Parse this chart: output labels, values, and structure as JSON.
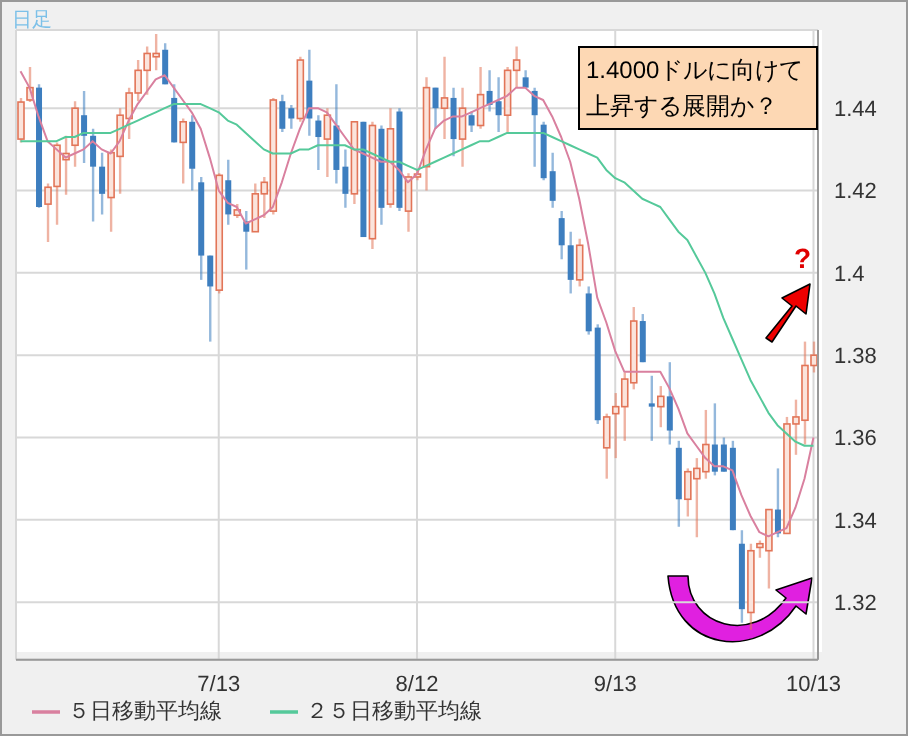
{
  "chart_data": {
    "type": "candlestick",
    "categories": [
      null,
      null,
      null,
      null,
      null,
      null,
      null,
      null,
      null,
      null,
      null,
      null,
      null,
      null,
      null,
      null,
      null,
      null,
      null,
      null,
      null,
      null,
      "7/13",
      null,
      null,
      null,
      null,
      null,
      null,
      null,
      null,
      null,
      null,
      null,
      null,
      null,
      null,
      null,
      null,
      null,
      null,
      null,
      null,
      null,
      "8/12",
      null,
      null,
      null,
      null,
      null,
      null,
      null,
      null,
      null,
      null,
      null,
      null,
      null,
      null,
      null,
      null,
      null,
      null,
      null,
      null,
      null,
      "9/13",
      null,
      null,
      null,
      null,
      null,
      null,
      null,
      null,
      null,
      null,
      null,
      null,
      null,
      null,
      null,
      null,
      null,
      null,
      null,
      null,
      null,
      "10/13"
    ],
    "ohlc": [
      [
        1.4325,
        1.4425,
        1.4317,
        1.4415
      ],
      [
        1.442,
        1.45,
        1.4415,
        1.445
      ],
      [
        1.445,
        1.4458,
        1.4158,
        1.416
      ],
      [
        1.4167,
        1.4217,
        1.4075,
        1.4208
      ],
      [
        1.421,
        1.4317,
        1.4117,
        1.431
      ],
      [
        1.4275,
        1.4333,
        1.419,
        1.429
      ],
      [
        1.431,
        1.4417,
        1.4258,
        1.44
      ],
      [
        1.4383,
        1.4442,
        1.4267,
        1.4333
      ],
      [
        1.4333,
        1.435,
        1.4125,
        1.4258
      ],
      [
        1.4258,
        1.4292,
        1.4142,
        1.4192
      ],
      [
        1.4183,
        1.43,
        1.41,
        1.4292
      ],
      [
        1.4283,
        1.44,
        1.4192,
        1.4383
      ],
      [
        1.4375,
        1.445,
        1.4325,
        1.4437
      ],
      [
        1.4437,
        1.4517,
        1.4417,
        1.4492
      ],
      [
        1.4492,
        1.455,
        1.4433,
        1.4533
      ],
      [
        1.4525,
        1.458,
        1.4492,
        1.4533
      ],
      [
        1.4542,
        1.4558,
        1.4458,
        1.4458
      ],
      [
        1.4425,
        1.4458,
        1.4317,
        1.4317
      ],
      [
        1.4317,
        1.4375,
        1.4217,
        1.4367
      ],
      [
        1.4367,
        1.4383,
        1.42,
        1.4253
      ],
      [
        1.422,
        1.4233,
        1.3983,
        1.4042
      ],
      [
        1.4042,
        1.4042,
        1.3833,
        1.3967
      ],
      [
        1.3958,
        1.4242,
        1.395,
        1.4237
      ],
      [
        1.4225,
        1.4275,
        1.4117,
        1.4142
      ],
      [
        1.414,
        1.4167,
        1.4133,
        1.4153
      ],
      [
        1.4125,
        1.415,
        1.4008,
        1.41
      ],
      [
        1.41,
        1.4217,
        1.41,
        1.4192
      ],
      [
        1.4192,
        1.4233,
        1.4133,
        1.422
      ],
      [
        1.415,
        1.4425,
        1.4142,
        1.442
      ],
      [
        1.4417,
        1.4433,
        1.4342,
        1.435
      ],
      [
        1.44,
        1.4408,
        1.435,
        1.4375
      ],
      [
        1.4375,
        1.4525,
        1.4367,
        1.4517
      ],
      [
        1.4467,
        1.4542,
        1.4333,
        1.4375
      ],
      [
        1.437,
        1.4383,
        1.425,
        1.433
      ],
      [
        1.4325,
        1.44,
        1.4233,
        1.4383
      ],
      [
        1.4358,
        1.4458,
        1.4217,
        1.425
      ],
      [
        1.4258,
        1.43,
        1.4158,
        1.4192
      ],
      [
        1.4192,
        1.4367,
        1.4167,
        1.4367
      ],
      [
        1.4367,
        1.4367,
        1.4087,
        1.4087
      ],
      [
        1.4083,
        1.4367,
        1.4058,
        1.4358
      ],
      [
        1.435,
        1.4358,
        1.4117,
        1.4158
      ],
      [
        1.4167,
        1.44,
        1.4158,
        1.435
      ],
      [
        1.4392,
        1.44,
        1.415,
        1.4158
      ],
      [
        1.415,
        1.4242,
        1.41,
        1.4233
      ],
      [
        1.4233,
        1.425,
        1.4225,
        1.424
      ],
      [
        1.4258,
        1.4475,
        1.42,
        1.445
      ],
      [
        1.445,
        1.445,
        1.435,
        1.44
      ],
      [
        1.44,
        1.4525,
        1.4325,
        1.4425
      ],
      [
        1.4425,
        1.445,
        1.4283,
        1.4325
      ],
      [
        1.4325,
        1.445,
        1.4258,
        1.44
      ],
      [
        1.4383,
        1.4392,
        1.4342,
        1.4358
      ],
      [
        1.4358,
        1.45,
        1.435,
        1.4433
      ],
      [
        1.4442,
        1.4492,
        1.4392,
        1.4408
      ],
      [
        1.4417,
        1.4475,
        1.4342,
        1.4383
      ],
      [
        1.4383,
        1.45,
        1.4342,
        1.4492
      ],
      [
        1.4492,
        1.455,
        1.445,
        1.4517
      ],
      [
        1.4475,
        1.4492,
        1.445,
        1.445
      ],
      [
        1.4442,
        1.445,
        1.4258,
        1.4383
      ],
      [
        1.436,
        1.4367,
        1.4225,
        1.423
      ],
      [
        1.4247,
        1.4292,
        1.4158,
        1.4175
      ],
      [
        1.4133,
        1.415,
        1.4033,
        1.4067
      ],
      [
        1.4067,
        1.41,
        1.395,
        1.3983
      ],
      [
        1.3983,
        1.4083,
        1.3967,
        1.4067
      ],
      [
        1.395,
        1.3967,
        1.385,
        1.3858
      ],
      [
        1.3867,
        1.3875,
        1.3633,
        1.3642
      ],
      [
        1.3575,
        1.3658,
        1.35,
        1.365
      ],
      [
        1.3658,
        1.3708,
        1.355,
        1.3675
      ],
      [
        1.3675,
        1.3758,
        1.3592,
        1.3742
      ],
      [
        1.3733,
        1.3917,
        1.3717,
        1.3883
      ],
      [
        1.3883,
        1.39,
        1.3783,
        1.3783
      ],
      [
        1.3683,
        1.375,
        1.3592,
        1.3675
      ],
      [
        1.3675,
        1.3725,
        1.3625,
        1.37
      ],
      [
        1.37,
        1.3783,
        1.3583,
        1.3617
      ],
      [
        1.3575,
        1.3592,
        1.3383,
        1.345
      ],
      [
        1.345,
        1.3525,
        1.3408,
        1.3517
      ],
      [
        1.35,
        1.355,
        1.3358,
        1.3525
      ],
      [
        1.3517,
        1.3667,
        1.35,
        1.3583
      ],
      [
        1.3583,
        1.3683,
        1.3508,
        1.3517
      ],
      [
        1.3583,
        1.36,
        1.3517,
        1.3517
      ],
      [
        1.3575,
        1.3592,
        1.3375,
        1.3375
      ],
      [
        1.3342,
        1.3375,
        1.315,
        1.3183
      ],
      [
        1.3175,
        1.3342,
        1.3133,
        1.3325
      ],
      [
        1.3333,
        1.335,
        1.3308,
        1.3342
      ],
      [
        1.3325,
        1.3425,
        1.3233,
        1.3425
      ],
      [
        1.3425,
        1.3525,
        1.3358,
        1.3367
      ],
      [
        1.3367,
        1.365,
        1.3367,
        1.3633
      ],
      [
        1.3633,
        1.3692,
        1.3558,
        1.365
      ],
      [
        1.3642,
        1.3833,
        1.3583,
        1.3775
      ],
      [
        1.3775,
        1.3833,
        1.3758,
        1.38
      ]
    ],
    "colors": [
      "#e27558",
      "#e27558",
      "#3d7ebf",
      "#e27558",
      "#e27558",
      "#e27558",
      "#e27558",
      "#3d7ebf",
      "#3d7ebf",
      "#3d7ebf",
      "#e27558",
      "#e27558",
      "#e27558",
      "#e27558",
      "#e27558",
      "#e27558",
      "#3d7ebf",
      "#3d7ebf",
      "#e27558",
      "#3d7ebf",
      "#3d7ebf",
      "#3d7ebf",
      "#e27558",
      "#3d7ebf",
      "#e27558",
      "#3d7ebf",
      "#e27558",
      "#e27558",
      "#e27558",
      "#3d7ebf",
      "#3d7ebf",
      "#e27558",
      "#3d7ebf",
      "#3d7ebf",
      "#e27558",
      "#3d7ebf",
      "#3d7ebf",
      "#e27558",
      "#3d7ebf",
      "#e27558",
      "#3d7ebf",
      "#e27558",
      "#3d7ebf",
      "#e27558",
      "#e27558",
      "#e27558",
      "#3d7ebf",
      "#e27558",
      "#3d7ebf",
      "#e27558",
      "#3d7ebf",
      "#e27558",
      "#3d7ebf",
      "#3d7ebf",
      "#e27558",
      "#e27558",
      "#3d7ebf",
      "#3d7ebf",
      "#3d7ebf",
      "#3d7ebf",
      "#3d7ebf",
      "#3d7ebf",
      "#e27558",
      "#3d7ebf",
      "#3d7ebf",
      "#e27558",
      "#e27558",
      "#e27558",
      "#e27558",
      "#3d7ebf",
      "#3d7ebf",
      "#e27558",
      "#3d7ebf",
      "#3d7ebf",
      "#e27558",
      "#e27558",
      "#e27558",
      "#3d7ebf",
      "#3d7ebf",
      "#3d7ebf",
      "#3d7ebf",
      "#e27558",
      "#e27558",
      "#e27558",
      "#3d7ebf",
      "#e27558",
      "#e27558",
      "#e27558",
      "#e27558"
    ],
    "series": [
      {
        "name": "５日移動平均線",
        "type": "line",
        "color": "#d9809f",
        "values": [
          1.449,
          1.445,
          1.438,
          1.432,
          1.43,
          1.428,
          1.429,
          1.43,
          1.432,
          1.43,
          1.429,
          1.432,
          1.437,
          1.441,
          1.444,
          1.447,
          1.448,
          1.445,
          1.442,
          1.439,
          1.435,
          1.428,
          1.42,
          1.417,
          1.416,
          1.412,
          1.413,
          1.414,
          1.416,
          1.422,
          1.429,
          1.435,
          1.44,
          1.44,
          1.439,
          1.436,
          1.433,
          1.43,
          1.429,
          1.428,
          1.427,
          1.427,
          1.425,
          1.422,
          1.424,
          1.43,
          1.435,
          1.437,
          1.438,
          1.438,
          1.439,
          1.44,
          1.441,
          1.442,
          1.443,
          1.445,
          1.445,
          1.443,
          1.442,
          1.438,
          1.433,
          1.427,
          1.418,
          1.407,
          1.394,
          1.388,
          1.381,
          1.376,
          1.376,
          1.376,
          1.376,
          1.376,
          1.372,
          1.367,
          1.361,
          1.358,
          1.355,
          1.353,
          1.353,
          1.352,
          1.346,
          1.341,
          1.337,
          1.336,
          1.337,
          1.338,
          1.343,
          1.35,
          1.36
        ]
      },
      {
        "name": "２５日移動平均線",
        "type": "line",
        "color": "#55c99a",
        "values": [
          1.432,
          1.432,
          1.432,
          1.432,
          1.432,
          1.433,
          1.433,
          1.434,
          1.434,
          1.434,
          1.434,
          1.435,
          1.436,
          1.437,
          1.438,
          1.439,
          1.44,
          1.441,
          1.441,
          1.441,
          1.441,
          1.44,
          1.439,
          1.437,
          1.436,
          1.434,
          1.432,
          1.43,
          1.429,
          1.429,
          1.429,
          1.43,
          1.43,
          1.431,
          1.431,
          1.431,
          1.431,
          1.43,
          1.43,
          1.429,
          1.428,
          1.427,
          1.427,
          1.426,
          1.425,
          1.426,
          1.427,
          1.428,
          1.429,
          1.43,
          1.431,
          1.432,
          1.432,
          1.433,
          1.434,
          1.434,
          1.434,
          1.434,
          1.434,
          1.433,
          1.432,
          1.431,
          1.43,
          1.429,
          1.428,
          1.425,
          1.423,
          1.422,
          1.42,
          1.418,
          1.417,
          1.416,
          1.413,
          1.41,
          1.408,
          1.404,
          1.4,
          1.395,
          1.389,
          1.384,
          1.379,
          1.374,
          1.37,
          1.366,
          1.363,
          1.361,
          1.359,
          1.358,
          1.358
        ]
      }
    ],
    "ylim": [
      1.306,
      1.459
    ],
    "yticks": [
      1.32,
      1.34,
      1.36,
      1.38,
      1.4,
      1.42,
      1.44
    ],
    "grid": true,
    "legend": "bottom",
    "annotations": [
      "日足",
      "1.4000ドルに向けて上昇する展開か？",
      "?"
    ]
  }
}
